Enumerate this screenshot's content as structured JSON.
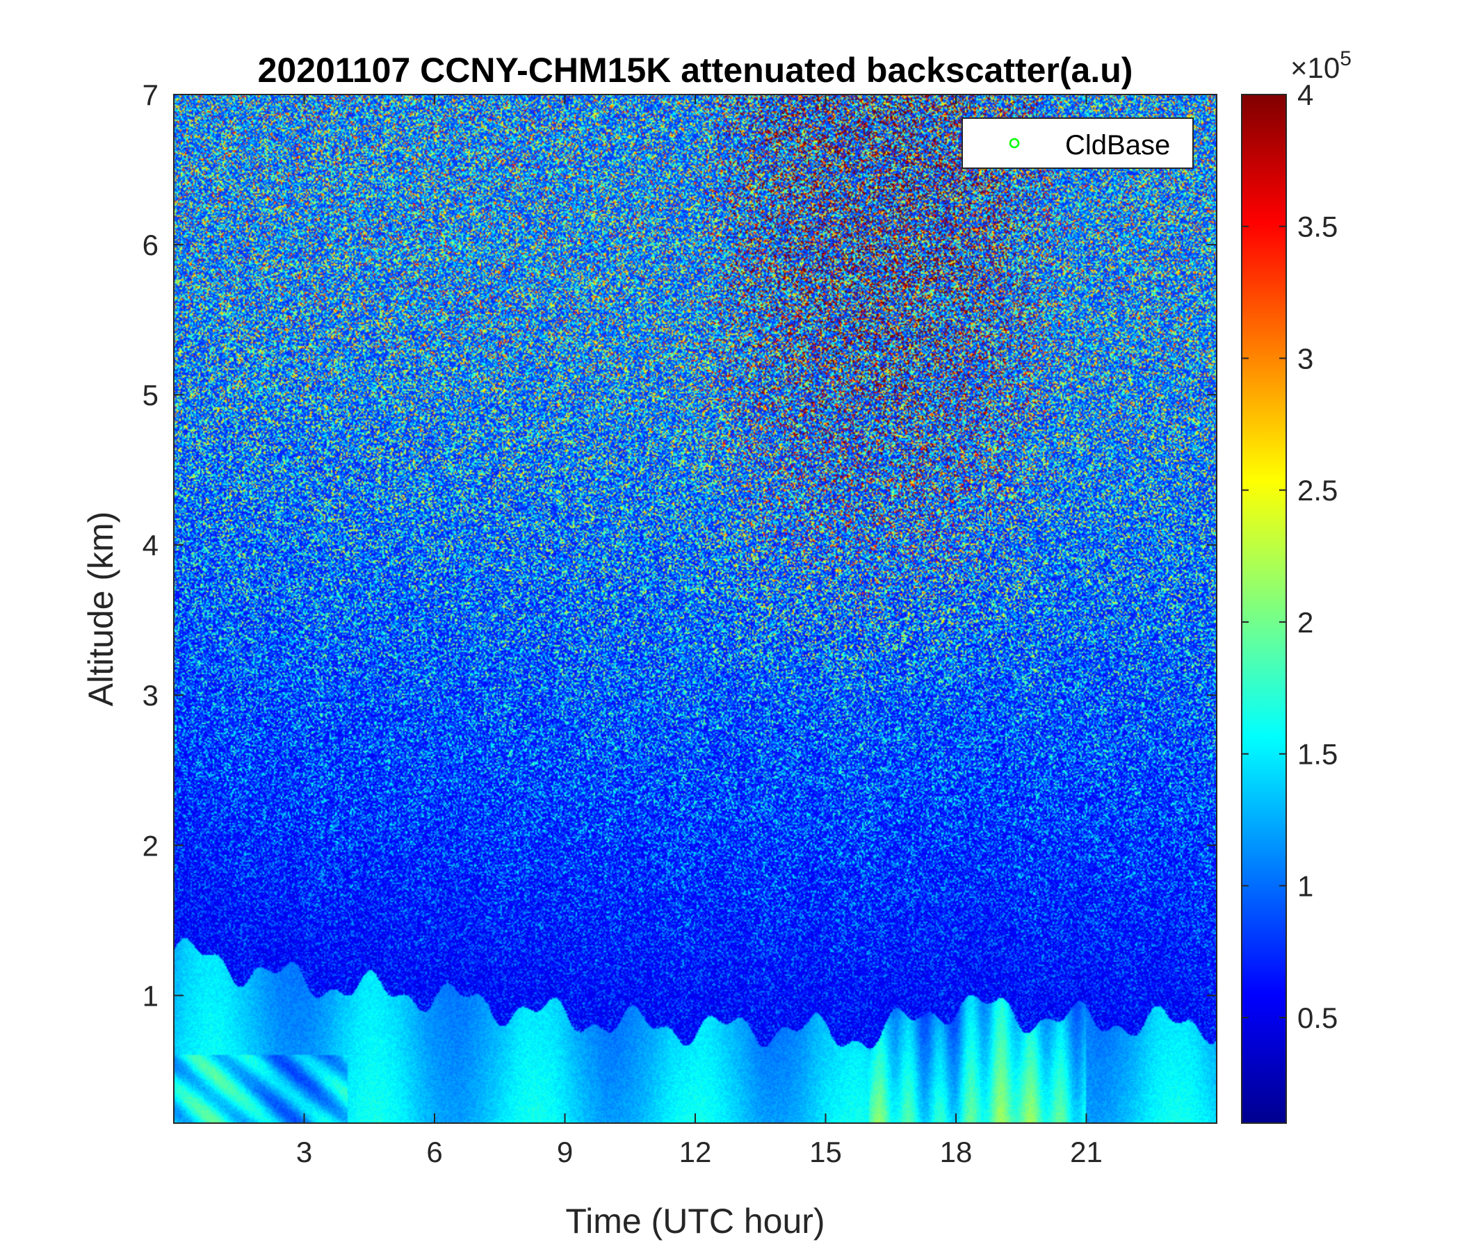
{
  "chart_data": {
    "type": "heatmap",
    "title": "20201107 CCNY-CHM15K attenuated backscatter(a.u)",
    "xlabel": "Time (UTC hour)",
    "ylabel": "Altitude (km)",
    "xlim": [
      0,
      24
    ],
    "ylim": [
      0.15,
      7
    ],
    "x_ticks": [
      3,
      6,
      9,
      12,
      15,
      18,
      21
    ],
    "y_ticks": [
      1,
      2,
      3,
      4,
      5,
      6,
      7
    ],
    "colorbar": {
      "colormap": "jet",
      "clim": [
        0.1,
        4
      ],
      "ticks": [
        0.5,
        1,
        1.5,
        2,
        2.5,
        3,
        3.5,
        4
      ],
      "exponent_label": "×10",
      "exponent": "5"
    },
    "legend": {
      "entries": [
        "CldBase"
      ],
      "marker_color": "#00ff00",
      "placement": "top-right"
    },
    "description_values": {
      "boundary_layer_top_km": [
        [
          0,
          1.3
        ],
        [
          2,
          1.15
        ],
        [
          4,
          1.05
        ],
        [
          6,
          1.0
        ],
        [
          8,
          0.9
        ],
        [
          10,
          0.82
        ],
        [
          12,
          0.78
        ],
        [
          14,
          0.78
        ],
        [
          16,
          0.72
        ],
        [
          18,
          0.95
        ],
        [
          20,
          0.85
        ],
        [
          22,
          0.82
        ],
        [
          24,
          0.8
        ]
      ],
      "noise_upper_km_background": 0.5,
      "noise_enhanced_hours": [
        12,
        20.5
      ]
    }
  }
}
